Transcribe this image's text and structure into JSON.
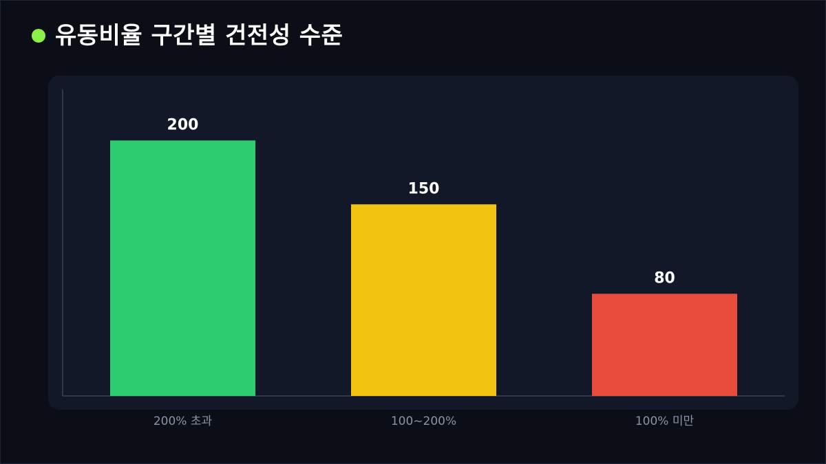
{
  "header": {
    "title": "유동비율 구간별 건전성 수준",
    "dot_color": "#8cf04a"
  },
  "chart_data": {
    "type": "bar",
    "title": "유동비율 구간별 건전성 수준",
    "categories": [
      "200% 초과",
      "100~200%",
      "100% 미만"
    ],
    "values": [
      200,
      150,
      80
    ],
    "colors": [
      "#2ecc71",
      "#f1c40f",
      "#e74c3c"
    ],
    "xlabel": "",
    "ylabel": "",
    "ylim": [
      0,
      240
    ],
    "grid": false,
    "legend": "none",
    "data_labels": true
  }
}
